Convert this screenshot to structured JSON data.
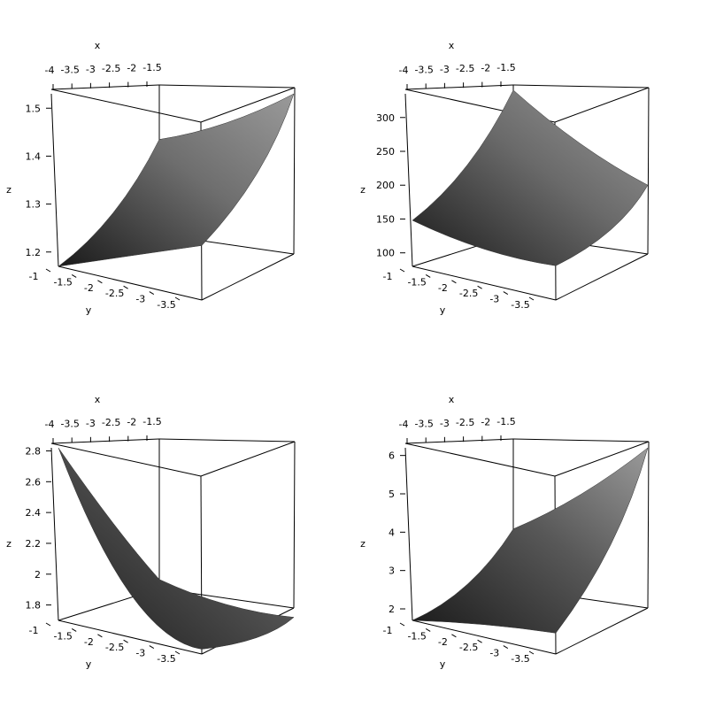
{
  "chart_data": [
    {
      "type": "surface3d",
      "xlabel": "x",
      "ylabel": "y",
      "zlabel": "z",
      "x_ticks": [
        "-4",
        "-3.5",
        "-3",
        "-2.5",
        "-2",
        "-1.5"
      ],
      "y_ticks": [
        "-1",
        "-1.5",
        "-2",
        "-2.5",
        "-3",
        "-3.5"
      ],
      "z_ticks": [
        "1.2",
        "1.3",
        "1.4",
        "1.5"
      ],
      "zlim": [
        1.17,
        1.53
      ],
      "corner_z": {
        "near_left": 1.17,
        "front": 1.28,
        "far": 1.53,
        "back_right": 1.42
      },
      "surface_color": "#6e6e6e"
    },
    {
      "type": "surface3d",
      "xlabel": "x",
      "ylabel": "y",
      "zlabel": "z",
      "x_ticks": [
        "-4",
        "-3.5",
        "-3",
        "-2.5",
        "-2",
        "-1.5"
      ],
      "y_ticks": [
        "-1",
        "-1.5",
        "-2",
        "-2.5",
        "-3",
        "-3.5"
      ],
      "z_ticks": [
        "100",
        "150",
        "200",
        "250",
        "300"
      ],
      "zlim": [
        80,
        335
      ],
      "corner_z": {
        "near_left": 148,
        "front": 128,
        "far": 200,
        "back_right": 330
      },
      "surface_color": "#6a6a6a"
    },
    {
      "type": "surface3d",
      "xlabel": "x",
      "ylabel": "y",
      "zlabel": "z",
      "x_ticks": [
        "-4",
        "-3.5",
        "-3",
        "-2.5",
        "-2",
        "-1.5"
      ],
      "y_ticks": [
        "-1",
        "-1.5",
        "-2",
        "-2.5",
        "-3",
        "-3.5"
      ],
      "z_ticks": [
        "1.8",
        "2",
        "2.2",
        "2.4",
        "2.6",
        "2.8"
      ],
      "zlim": [
        1.7,
        2.82
      ],
      "corner_z": {
        "near_left": 2.82,
        "front": 1.72,
        "far": 1.72,
        "back_right": 1.92
      },
      "surface_color": "#505050"
    },
    {
      "type": "surface3d",
      "xlabel": "x",
      "ylabel": "y",
      "zlabel": "z",
      "x_ticks": [
        "-4",
        "-3.5",
        "-3",
        "-2.5",
        "-2",
        "-1.5"
      ],
      "y_ticks": [
        "-1",
        "-1.5",
        "-2",
        "-2.5",
        "-3",
        "-3.5"
      ],
      "z_ticks": [
        "2",
        "3",
        "4",
        "5",
        "6"
      ],
      "zlim": [
        1.7,
        6.2
      ],
      "corner_z": {
        "near_left": 1.7,
        "front": 2.2,
        "far": 6.2,
        "back_right": 3.9
      },
      "surface_color": "#585858"
    }
  ]
}
